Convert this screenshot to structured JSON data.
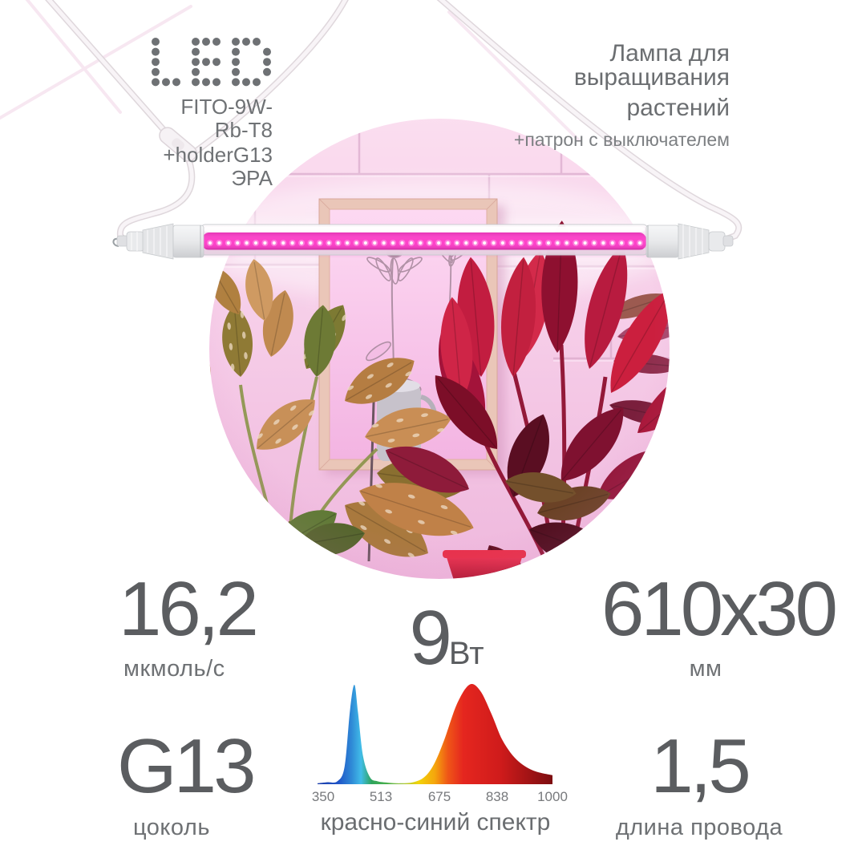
{
  "brand": {
    "logo_text": "LED",
    "model": "FITO-9W-Rb-T8",
    "holder": "+holderG13 ЭРА",
    "logo_color": "#6e7174"
  },
  "header": {
    "title_line1": "Лампа для выращивания",
    "title_line2": "растений",
    "subtitle": "+патрон с выключателем"
  },
  "specs": {
    "flux": {
      "value": "16,2",
      "unit": "мкмоль/с"
    },
    "power": {
      "value": "9",
      "unit": "Вт"
    },
    "dimensions": {
      "value": "610x30",
      "unit": "мм"
    },
    "base": {
      "value": "G13",
      "unit": "цоколь"
    },
    "cord": {
      "value": "1,5",
      "unit": "длина провода"
    }
  },
  "photo": {
    "subject": "led-grow-tube-over-houseplants",
    "lamp_light_color": "#ff4ecf"
  },
  "chart_data": {
    "type": "area",
    "title": "красно-синий спектр",
    "tick_labels": [
      "350",
      "513",
      "675",
      "838",
      "1000"
    ],
    "x_range": [
      350,
      1000
    ],
    "grid": false,
    "legend": false,
    "series": [
      {
        "name": "спектр",
        "points": [
          [
            350,
            0.01
          ],
          [
            378,
            0.02
          ],
          [
            405,
            0.03
          ],
          [
            425,
            0.18
          ],
          [
            440,
            0.75
          ],
          [
            452,
            1.0
          ],
          [
            462,
            0.72
          ],
          [
            476,
            0.28
          ],
          [
            495,
            0.07
          ],
          [
            515,
            0.03
          ],
          [
            545,
            0.015
          ],
          [
            580,
            0.01
          ],
          [
            615,
            0.02
          ],
          [
            645,
            0.07
          ],
          [
            672,
            0.2
          ],
          [
            700,
            0.44
          ],
          [
            735,
            0.8
          ],
          [
            770,
            1.0
          ],
          [
            800,
            0.94
          ],
          [
            832,
            0.7
          ],
          [
            862,
            0.44
          ],
          [
            900,
            0.25
          ],
          [
            945,
            0.14
          ],
          [
            1000,
            0.09
          ]
        ]
      }
    ],
    "gradient_stops": [
      [
        "0",
        "#1d3faa"
      ],
      [
        "0.09",
        "#1f55c8"
      ],
      [
        "0.145",
        "#2f8ad6"
      ],
      [
        "0.185",
        "#41bce8"
      ],
      [
        "0.23",
        "#2fa45c"
      ],
      [
        "0.30",
        "#4bb04a"
      ],
      [
        "0.36",
        "#9cc43c"
      ],
      [
        "0.43",
        "#f2d409"
      ],
      [
        "0.50",
        "#f5a50c"
      ],
      [
        "0.555",
        "#ef5617"
      ],
      [
        "0.62",
        "#e5261f"
      ],
      [
        "0.78",
        "#cf1b1b"
      ],
      [
        "1",
        "#7c0d10"
      ]
    ]
  }
}
